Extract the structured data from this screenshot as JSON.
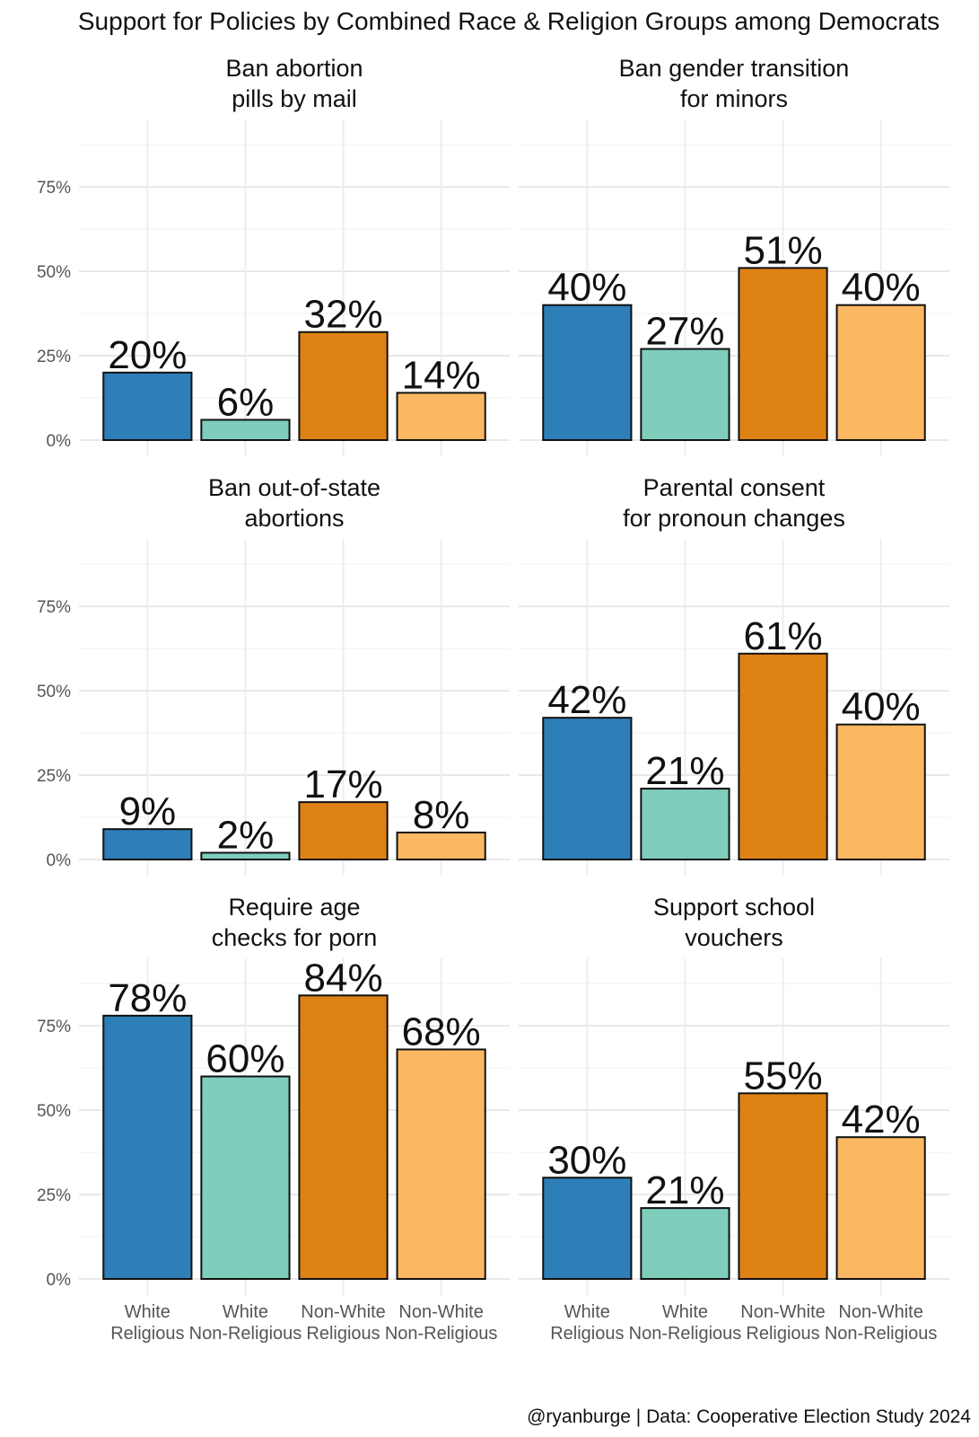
{
  "chart_data": {
    "type": "bar",
    "title": "Support for Policies by Combined Race & Religion Groups among Democrats",
    "caption": "@ryanburge | Data: Cooperative Election Study 2024",
    "categories": [
      "White Religious",
      "White Non-Religious",
      "Non-White Religious",
      "Non-White Non-Religious"
    ],
    "category_lines": [
      [
        "White",
        "Religious"
      ],
      [
        "White",
        "Non-Religious"
      ],
      [
        "Non-White",
        "Religious"
      ],
      [
        "Non-White",
        "Non-Religious"
      ]
    ],
    "colors": [
      "#2e7fb8",
      "#7fcdbb",
      "#df8215",
      "#fbb762"
    ],
    "ylim": [
      0,
      0.95
    ],
    "yticks": [
      0,
      0.25,
      0.5,
      0.75
    ],
    "ytick_labels": [
      "0%",
      "25%",
      "50%",
      "75%"
    ],
    "grid": true,
    "legend": "none",
    "panels": [
      {
        "title_lines": [
          "Ban abortion",
          "pills by mail"
        ],
        "values": [
          0.2,
          0.06,
          0.32,
          0.14
        ],
        "labels": [
          "20%",
          "6%",
          "32%",
          "14%"
        ]
      },
      {
        "title_lines": [
          "Ban gender transition",
          "for minors"
        ],
        "values": [
          0.4,
          0.27,
          0.51,
          0.4
        ],
        "labels": [
          "40%",
          "27%",
          "51%",
          "40%"
        ]
      },
      {
        "title_lines": [
          "Ban out-of-state",
          "abortions"
        ],
        "values": [
          0.09,
          0.02,
          0.17,
          0.08
        ],
        "labels": [
          "9%",
          "2%",
          "17%",
          "8%"
        ]
      },
      {
        "title_lines": [
          "Parental consent",
          "for pronoun changes"
        ],
        "values": [
          0.42,
          0.21,
          0.61,
          0.4
        ],
        "labels": [
          "42%",
          "21%",
          "61%",
          "40%"
        ]
      },
      {
        "title_lines": [
          "Require age",
          "checks for porn"
        ],
        "values": [
          0.78,
          0.6,
          0.84,
          0.68
        ],
        "labels": [
          "78%",
          "60%",
          "84%",
          "68%"
        ]
      },
      {
        "title_lines": [
          "Support school",
          "vouchers"
        ],
        "values": [
          0.3,
          0.21,
          0.55,
          0.42
        ],
        "labels": [
          "30%",
          "21%",
          "55%",
          "42%"
        ]
      }
    ]
  }
}
